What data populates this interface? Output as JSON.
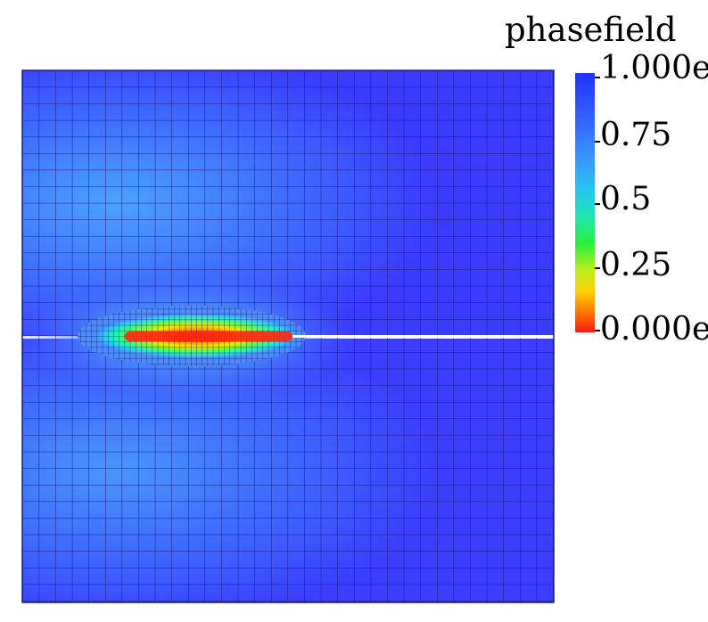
{
  "legend": {
    "title": "phasefield",
    "ticks": [
      "1.000e",
      "0.75",
      "0.5",
      "0.25",
      "0.000e"
    ]
  },
  "colors": {
    "field_high": "#3a3fff",
    "field_mid": "#4f8fff",
    "field_low": "#ff1a1a",
    "mesh_lines": "#1a1a7a"
  }
}
